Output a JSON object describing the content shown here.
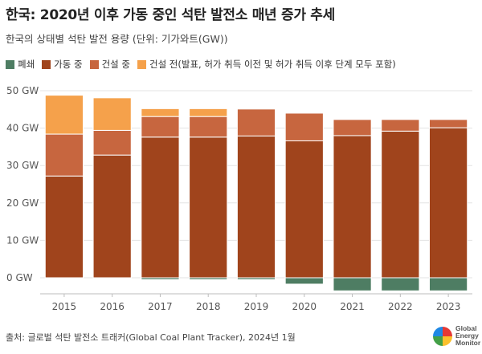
{
  "title": "한국: 2020년 이후 가동 중인 석탄 발전소 매년 증가 추세",
  "subtitle": "한국의 상태별 석탄 발전 용량 (단위: 기가와트(GW))",
  "legend": [
    {
      "label": "폐쇄",
      "color": "#4e7d63"
    },
    {
      "label": "가동 중",
      "color": "#a0441c"
    },
    {
      "label": "건설 중",
      "color": "#c7663f"
    },
    {
      "label": "건설 전(발표, 허가 취득 이전 및 허가 취득 이후 단계 모두 포함)",
      "color": "#f5a14b"
    }
  ],
  "footer": "출처: 글로벌 석탄 발전소 트래커(Global Coal Plant Tracker), 2024년 1월",
  "logo": {
    "line1": "Global",
    "line2": "Energy",
    "line3": "Monitor"
  },
  "chart_data": {
    "type": "bar",
    "stacked": true,
    "categories": [
      "2015",
      "2016",
      "2017",
      "2018",
      "2019",
      "2020",
      "2021",
      "2022",
      "2023"
    ],
    "series": [
      {
        "name": "폐쇄",
        "color": "#4e7d63",
        "values": [
          0,
          0,
          -0.5,
          -0.5,
          -0.5,
          -1.7,
          -3.5,
          -3.5,
          -3.5
        ]
      },
      {
        "name": "가동 중",
        "color": "#a0441c",
        "values": [
          27.2,
          32.8,
          37.6,
          37.6,
          37.9,
          36.6,
          38.0,
          39.2,
          40.1
        ]
      },
      {
        "name": "건설 중",
        "color": "#c7663f",
        "values": [
          11.2,
          6.6,
          5.5,
          5.5,
          7.2,
          7.4,
          4.3,
          3.1,
          2.2
        ]
      },
      {
        "name": "건설 전(발표, 허가 취득 이전 및 허가 취득 이후 단계 모두 포함)",
        "color": "#f5a14b",
        "values": [
          10.4,
          8.7,
          2.1,
          2.1,
          0,
          0,
          0,
          0,
          0
        ]
      }
    ],
    "y_ticks": [
      "0 GW",
      "10 GW",
      "20 GW",
      "30 GW",
      "40 GW",
      "50 GW"
    ],
    "y_tick_values": [
      0,
      10,
      20,
      30,
      40,
      50
    ],
    "ylim": [
      -4,
      50
    ],
    "grid": true
  }
}
